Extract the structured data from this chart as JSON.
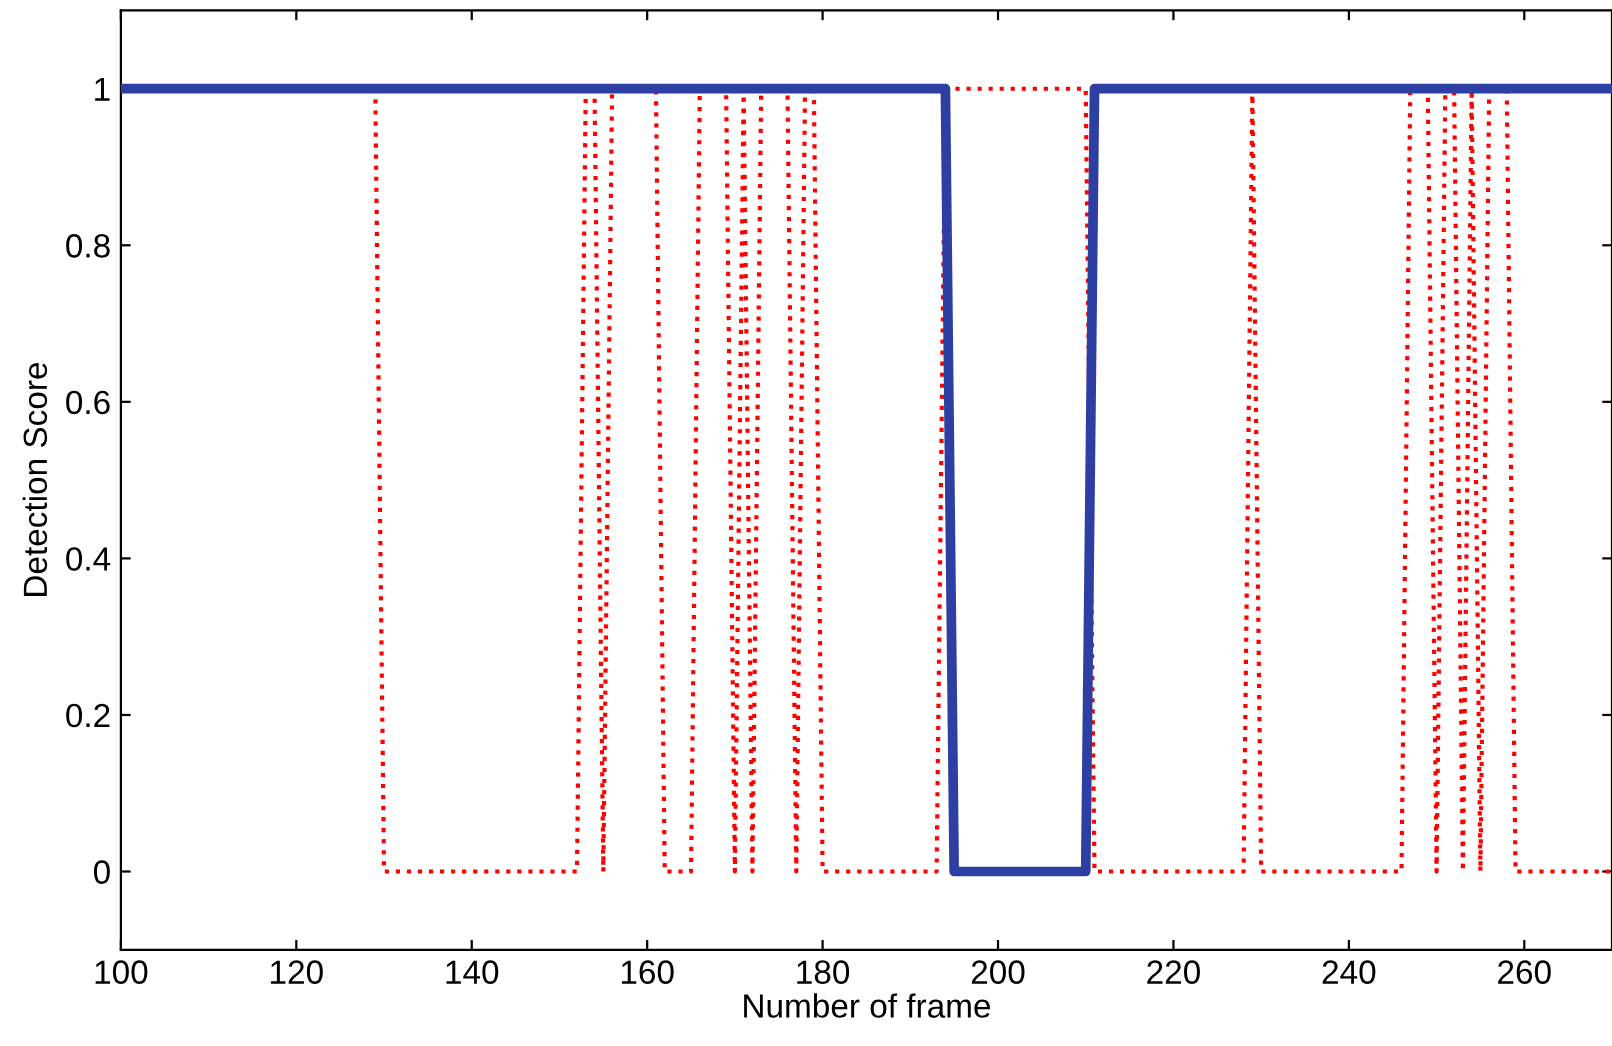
{
  "chart_data": {
    "type": "line",
    "xlabel": "Number of frame",
    "ylabel": "Detection Score",
    "xlim": [
      100,
      270
    ],
    "ylim": [
      -0.1,
      1.1
    ],
    "xticks": [
      100,
      120,
      140,
      160,
      180,
      200,
      220,
      240,
      260
    ],
    "yticks": [
      0,
      0.2,
      0.4,
      0.6,
      0.8,
      1
    ],
    "marker": "none",
    "series": [
      {
        "color": "#ff0000",
        "line_style": "dotted",
        "x": [
          100,
          129,
          130,
          152,
          153,
          154,
          155,
          156,
          161,
          162,
          165,
          166,
          169,
          170,
          171,
          172,
          173,
          176,
          177,
          178,
          179,
          180,
          193,
          194,
          210,
          211,
          228,
          229,
          230,
          246,
          247,
          249,
          250,
          251,
          252,
          253,
          254,
          255,
          256,
          258,
          259,
          260,
          270
        ],
        "values": [
          1,
          1,
          0,
          0,
          1,
          1,
          0,
          1,
          1,
          0,
          0,
          1,
          1,
          0,
          1,
          0,
          1,
          1,
          0,
          1,
          1,
          0,
          0,
          1,
          1,
          0,
          0,
          1,
          0,
          0,
          1,
          1,
          0,
          1,
          1,
          0,
          1,
          0,
          1,
          1,
          0,
          0,
          0
        ]
      },
      {
        "color": "#2e3fa3",
        "line_style": "solid",
        "x": [
          100,
          194,
          195,
          210,
          211,
          270
        ],
        "values": [
          1,
          1,
          0,
          0,
          1,
          1
        ]
      }
    ]
  }
}
